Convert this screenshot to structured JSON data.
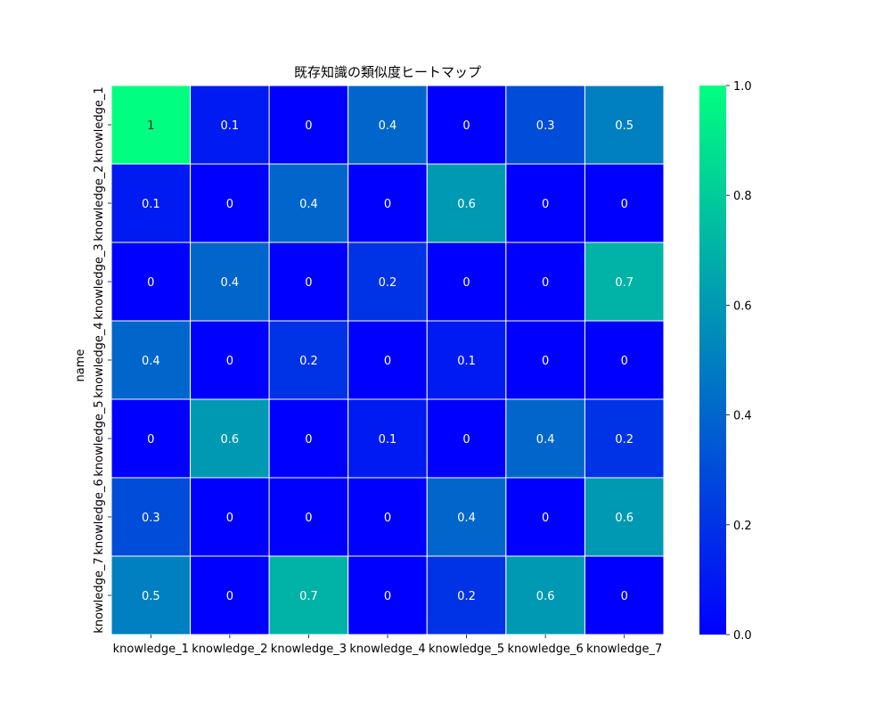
{
  "chart_data": {
    "type": "heatmap",
    "title": "既存知識の類似度ヒートマップ",
    "xlabel": "",
    "ylabel": "name",
    "x_categories": [
      "knowledge_1",
      "knowledge_2",
      "knowledge_3",
      "knowledge_4",
      "knowledge_5",
      "knowledge_6",
      "knowledge_7"
    ],
    "y_categories": [
      "knowledge_1",
      "knowledge_2",
      "knowledge_3",
      "knowledge_4",
      "knowledge_5",
      "knowledge_6",
      "knowledge_7"
    ],
    "values": [
      [
        1,
        0.1,
        0,
        0.4,
        0,
        0.3,
        0.5
      ],
      [
        0.1,
        0,
        0.4,
        0,
        0.6,
        0,
        0
      ],
      [
        0,
        0.4,
        0,
        0.2,
        0,
        0,
        0.7
      ],
      [
        0.4,
        0,
        0.2,
        0,
        0.1,
        0,
        0
      ],
      [
        0,
        0.6,
        0,
        0.1,
        0,
        0.4,
        0.2
      ],
      [
        0.3,
        0,
        0,
        0,
        0.4,
        0,
        0.6
      ],
      [
        0.5,
        0,
        0.7,
        0,
        0.2,
        0.6,
        0
      ]
    ],
    "colormap": "winter",
    "color_min": "#0000ff",
    "color_max": "#00ff80",
    "colorbar_range": [
      0.0,
      1.0
    ],
    "colorbar_ticks": [
      "0.0",
      "0.2",
      "0.4",
      "0.6",
      "0.8",
      "1.0"
    ],
    "cell_border_color": "#ffffff",
    "annotated": true
  }
}
